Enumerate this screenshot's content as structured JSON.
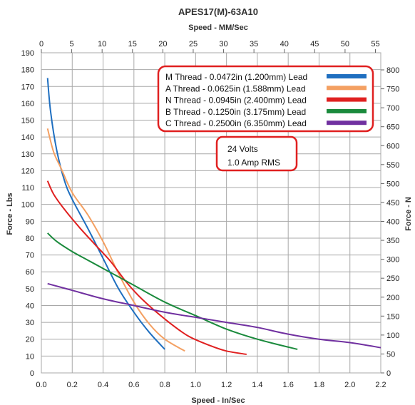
{
  "chart_data": {
    "type": "line",
    "title": "APES17(M)-63A10",
    "x_top_label": "Speed - MM/Sec",
    "x_bottom_label": "Speed - In/Sec",
    "y_left_label": "Force - Lbs",
    "y_right_label": "Force - N",
    "xlim": [
      0,
      2.2
    ],
    "x_ticks": [
      "0.0",
      "0.2",
      "0.4",
      "0.6",
      "0.8",
      "1.0",
      "1.2",
      "1.4",
      "1.6",
      "1.8",
      "2.0",
      "2.2"
    ],
    "ylim": [
      0,
      190
    ],
    "y_ticks": [
      "0",
      "10",
      "20",
      "30",
      "40",
      "50",
      "60",
      "70",
      "80",
      "90",
      "100",
      "110",
      "120",
      "130",
      "140",
      "150",
      "160",
      "170",
      "180",
      "190"
    ],
    "x_top_lim": [
      0,
      55.88
    ],
    "x_top_ticks": [
      "0",
      "5",
      "10",
      "15",
      "20",
      "25",
      "30",
      "35",
      "40",
      "45",
      "50",
      "55"
    ],
    "y_right_lim": [
      0,
      845.2
    ],
    "y_right_ticks": [
      "0",
      "50",
      "100",
      "150",
      "200",
      "250",
      "300",
      "350",
      "400",
      "450",
      "500",
      "550",
      "600",
      "650",
      "700",
      "750",
      "800"
    ],
    "grid": true,
    "legend_position": "top-right",
    "series": [
      {
        "name": "M Thread - 0.0472in (1.200mm) Lead",
        "color": "#1f6fc0",
        "x": [
          0.04,
          0.06,
          0.1,
          0.15,
          0.2,
          0.3,
          0.4,
          0.5,
          0.6,
          0.7,
          0.8
        ],
        "y": [
          175,
          155,
          132,
          114,
          103,
          86,
          68,
          50,
          36,
          24,
          14
        ]
      },
      {
        "name": "A Thread - 0.0625in (1.588mm) Lead",
        "color": "#f4a062",
        "x": [
          0.04,
          0.08,
          0.13,
          0.2,
          0.3,
          0.4,
          0.5,
          0.6,
          0.7,
          0.8,
          0.93
        ],
        "y": [
          145,
          131,
          121,
          107,
          94,
          78,
          59,
          42,
          29,
          20,
          13
        ]
      },
      {
        "name": "N Thread - 0.0945in (2.400mm) Lead",
        "color": "#e02020",
        "x": [
          0.04,
          0.08,
          0.15,
          0.25,
          0.35,
          0.45,
          0.55,
          0.65,
          0.8,
          0.95,
          1.1,
          1.2,
          1.33
        ],
        "y": [
          114,
          106,
          97,
          86,
          76,
          66,
          54,
          44,
          32,
          22,
          16,
          13,
          11
        ]
      },
      {
        "name": "B Thread - 0.1250in (3.175mm) Lead",
        "color": "#1a8a3c",
        "x": [
          0.04,
          0.1,
          0.2,
          0.3,
          0.4,
          0.5,
          0.6,
          0.8,
          1.0,
          1.2,
          1.4,
          1.66
        ],
        "y": [
          83,
          78,
          72,
          67,
          62,
          57,
          52,
          42,
          34,
          26,
          20,
          14
        ]
      },
      {
        "name": "C Thread - 0.2500in (6.350mm) Lead",
        "color": "#7030a0",
        "x": [
          0.04,
          0.2,
          0.4,
          0.6,
          0.8,
          1.0,
          1.2,
          1.4,
          1.6,
          1.8,
          2.0,
          2.2
        ],
        "y": [
          53,
          49,
          44,
          40,
          36,
          33,
          30,
          27,
          23,
          20,
          18,
          15
        ]
      }
    ],
    "annotation": {
      "line1": "24 Volts",
      "line2": "1.0 Amp RMS"
    }
  }
}
